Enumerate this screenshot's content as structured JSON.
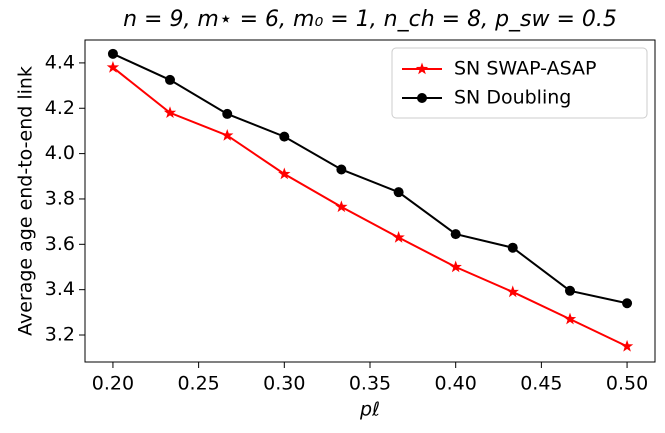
{
  "chart_data": {
    "type": "line",
    "title": "n = 9, m⋆ = 6, m₀ = 1, n_ch = 8, p_sw = 0.5",
    "x_label": "pℓ",
    "y_label": "Average age end-to-end link",
    "x": [
      0.2,
      0.2333,
      0.2667,
      0.3,
      0.3333,
      0.3667,
      0.4,
      0.4333,
      0.4667,
      0.5
    ],
    "series": [
      {
        "name": "SN SWAP-ASAP",
        "color": "#ff0000",
        "marker": "star",
        "values": [
          4.38,
          4.18,
          4.08,
          3.91,
          3.765,
          3.63,
          3.5,
          3.39,
          3.27,
          3.15
        ]
      },
      {
        "name": "SN Doubling",
        "color": "#000000",
        "marker": "circle",
        "values": [
          4.44,
          4.325,
          4.175,
          4.075,
          3.93,
          3.83,
          3.645,
          3.585,
          3.395,
          3.34
        ]
      }
    ],
    "xlim": [
      0.1837,
      0.5163
    ],
    "ylim": [
      3.081,
      4.501
    ],
    "xticks": [
      {
        "value": 0.2,
        "label": "0.20"
      },
      0.25,
      {
        "value": 0.3,
        "label": "0.30"
      },
      0.35,
      {
        "value": 0.4,
        "label": "0.40"
      },
      0.45,
      {
        "value": 0.5,
        "label": "0.50"
      }
    ],
    "yticks": [
      3.2,
      3.4,
      3.6,
      3.8,
      {
        "value": 4,
        "label": "4.0"
      },
      4.2,
      4.4
    ],
    "legend": "upper right"
  }
}
